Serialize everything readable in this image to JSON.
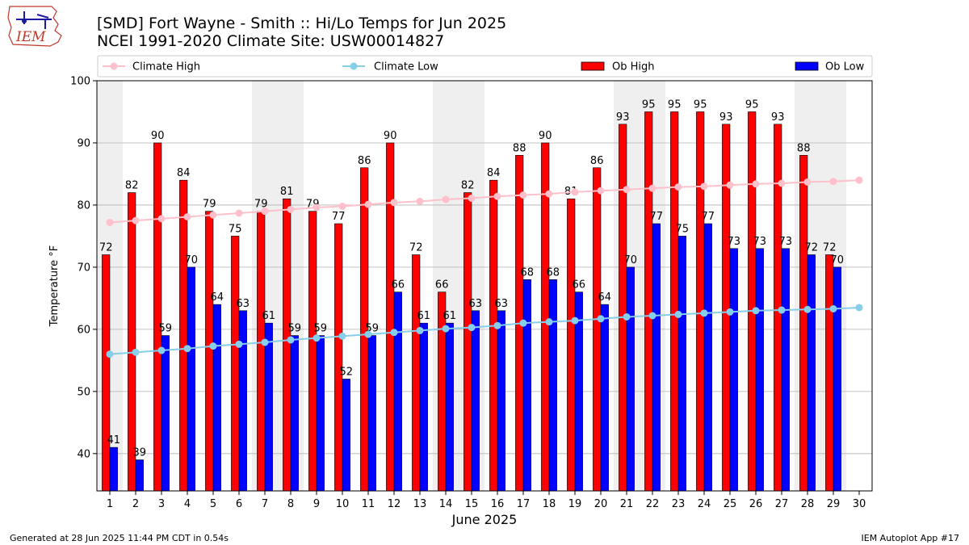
{
  "logo": {
    "text": "IEM"
  },
  "header": {
    "title_line1": "[SMD] Fort Wayne - Smith :: Hi/Lo Temps for Jun 2025",
    "title_line2": "NCEI 1991-2020 Climate Site: USW00014827"
  },
  "footer": {
    "generated": "Generated at 28 Jun 2025 11:44 PM CDT in 0.54s",
    "app": "IEM Autoplot App #17"
  },
  "colors": {
    "ob_high": "#ff0000",
    "ob_low": "#0000ff",
    "climate_high": "#ffc0cb",
    "climate_low": "#87ceeb",
    "shade": "#efefef",
    "grid": "#b0b0b0"
  },
  "chart_data": {
    "type": "bar",
    "xlabel": "June 2025",
    "ylabel": "Temperature °F",
    "ylim": [
      34,
      100
    ],
    "yticks": [
      40,
      50,
      60,
      70,
      80,
      90,
      100
    ],
    "xlim": [
      0.5,
      30.5
    ],
    "grid": "horizontal",
    "legend_position": "top",
    "categories": [
      "1",
      "2",
      "3",
      "4",
      "5",
      "6",
      "7",
      "8",
      "9",
      "10",
      "11",
      "12",
      "13",
      "14",
      "15",
      "16",
      "17",
      "18",
      "19",
      "20",
      "21",
      "22",
      "23",
      "24",
      "25",
      "26",
      "27",
      "28",
      "29",
      "30"
    ],
    "shaded_weekend_days": [
      1,
      7,
      8,
      14,
      15,
      21,
      22,
      28,
      29
    ],
    "series": [
      {
        "name": "Ob High",
        "kind": "bar",
        "values": [
          72,
          82,
          90,
          84,
          79,
          75,
          79,
          81,
          79,
          77,
          86,
          90,
          72,
          66,
          82,
          84,
          88,
          90,
          81,
          86,
          93,
          95,
          95,
          95,
          93,
          95,
          93,
          88,
          72,
          null
        ]
      },
      {
        "name": "Ob Low",
        "kind": "bar",
        "values": [
          41,
          39,
          59,
          70,
          64,
          63,
          61,
          59,
          59,
          52,
          59,
          66,
          61,
          61,
          63,
          63,
          68,
          68,
          66,
          64,
          70,
          77,
          75,
          77,
          73,
          73,
          73,
          72,
          70,
          null
        ]
      },
      {
        "name": "Climate High",
        "kind": "line",
        "values": [
          77.2,
          77.5,
          77.8,
          78.1,
          78.4,
          78.7,
          79.0,
          79.3,
          79.6,
          79.8,
          80.1,
          80.4,
          80.6,
          80.9,
          81.1,
          81.4,
          81.6,
          81.8,
          82.1,
          82.3,
          82.5,
          82.7,
          82.9,
          83.0,
          83.2,
          83.4,
          83.5,
          83.7,
          83.8,
          84.0
        ]
      },
      {
        "name": "Climate Low",
        "kind": "line",
        "values": [
          56.0,
          56.3,
          56.6,
          56.9,
          57.3,
          57.6,
          57.9,
          58.3,
          58.6,
          58.9,
          59.2,
          59.5,
          59.8,
          60.1,
          60.3,
          60.6,
          61.0,
          61.2,
          61.4,
          61.7,
          62.0,
          62.2,
          62.4,
          62.6,
          62.8,
          63.0,
          63.1,
          63.2,
          63.3,
          63.5
        ]
      }
    ]
  }
}
